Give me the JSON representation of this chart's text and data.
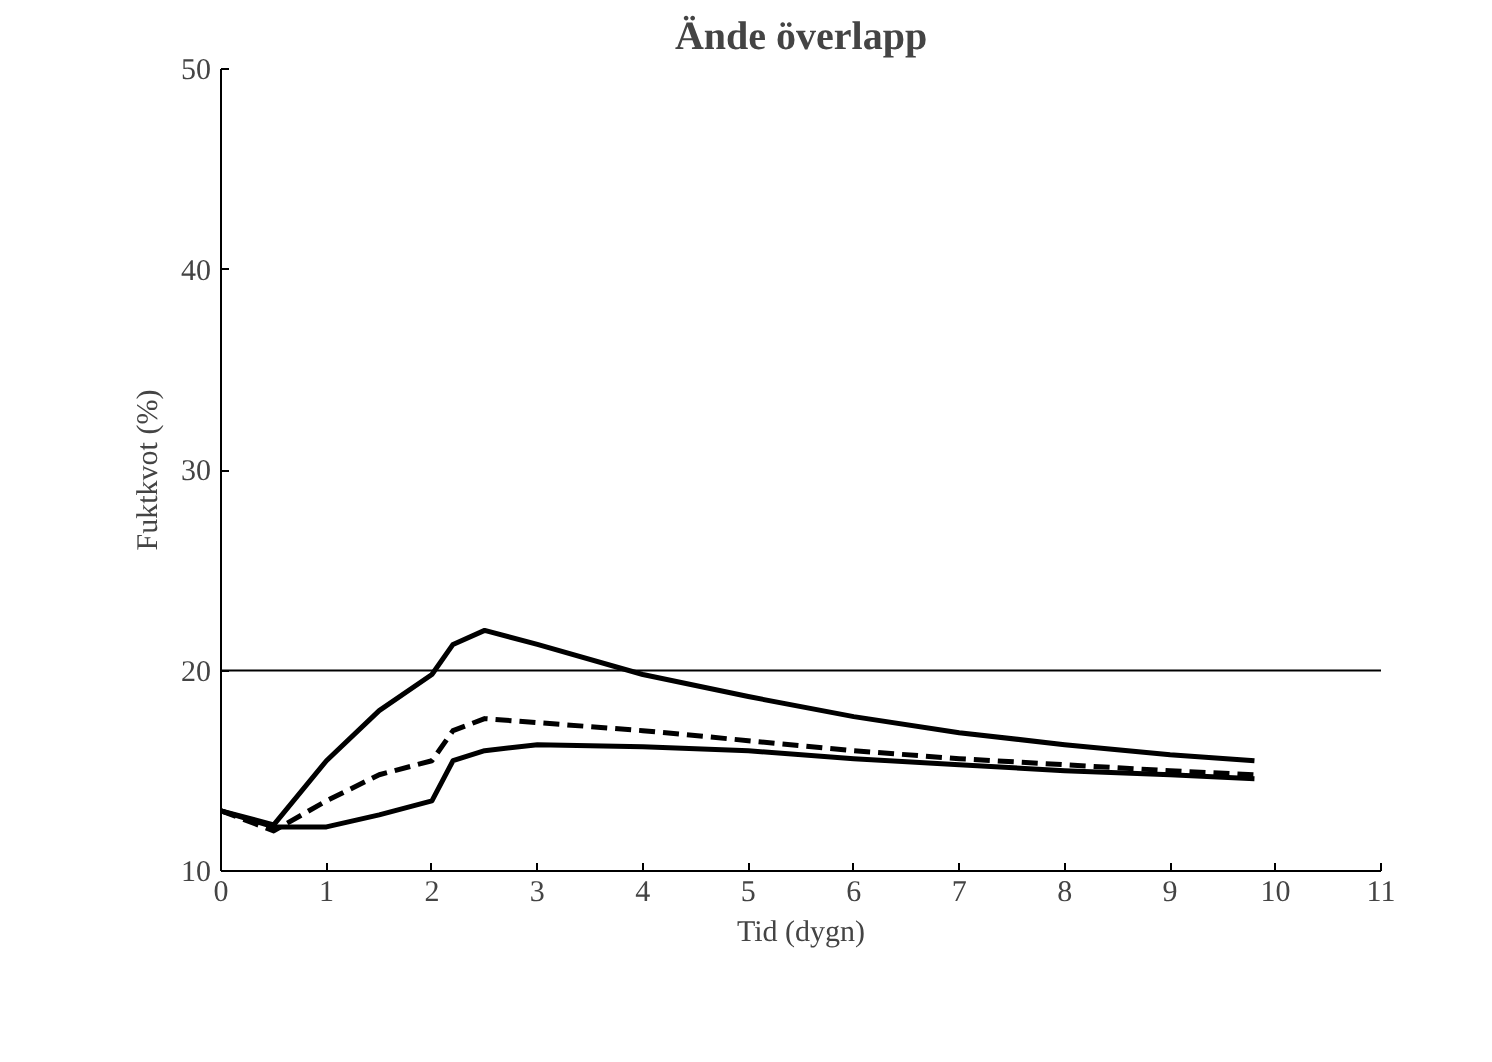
{
  "chart_data": {
    "type": "line",
    "title": "Ände överlapp",
    "xlabel": "Tid (dygn)",
    "ylabel": "Fuktkvot (%)",
    "xlim": [
      0,
      11
    ],
    "ylim": [
      10,
      50
    ],
    "xticks": [
      0,
      1,
      2,
      3,
      4,
      5,
      6,
      7,
      8,
      9,
      10,
      11
    ],
    "yticks": [
      10,
      20,
      30,
      40,
      50
    ],
    "grid": false,
    "marker": "none",
    "ref_lines": [
      {
        "axis": "y",
        "value": 20,
        "color": "#000000"
      }
    ],
    "x": [
      0,
      0.5,
      1,
      1.5,
      2,
      2.2,
      2.5,
      3,
      4,
      5,
      6,
      7,
      8,
      9,
      9.8
    ],
    "series": [
      {
        "color": "#000000",
        "line_style": "solid",
        "values": [
          13,
          12.3,
          15.5,
          18,
          19.8,
          21.3,
          22,
          21.3,
          19.8,
          18.7,
          17.7,
          16.9,
          16.3,
          15.8,
          15.5
        ]
      },
      {
        "color": "#000000",
        "line_style": "dashed",
        "values": [
          13,
          12,
          13.5,
          14.8,
          15.5,
          17,
          17.6,
          17.4,
          17,
          16.5,
          16,
          15.6,
          15.3,
          15,
          14.8
        ]
      },
      {
        "color": "#000000",
        "line_style": "solid",
        "values": [
          13,
          12.2,
          12.2,
          12.8,
          13.5,
          15.5,
          16,
          16.3,
          16.2,
          16,
          15.6,
          15.3,
          15,
          14.8,
          14.6
        ]
      }
    ]
  }
}
